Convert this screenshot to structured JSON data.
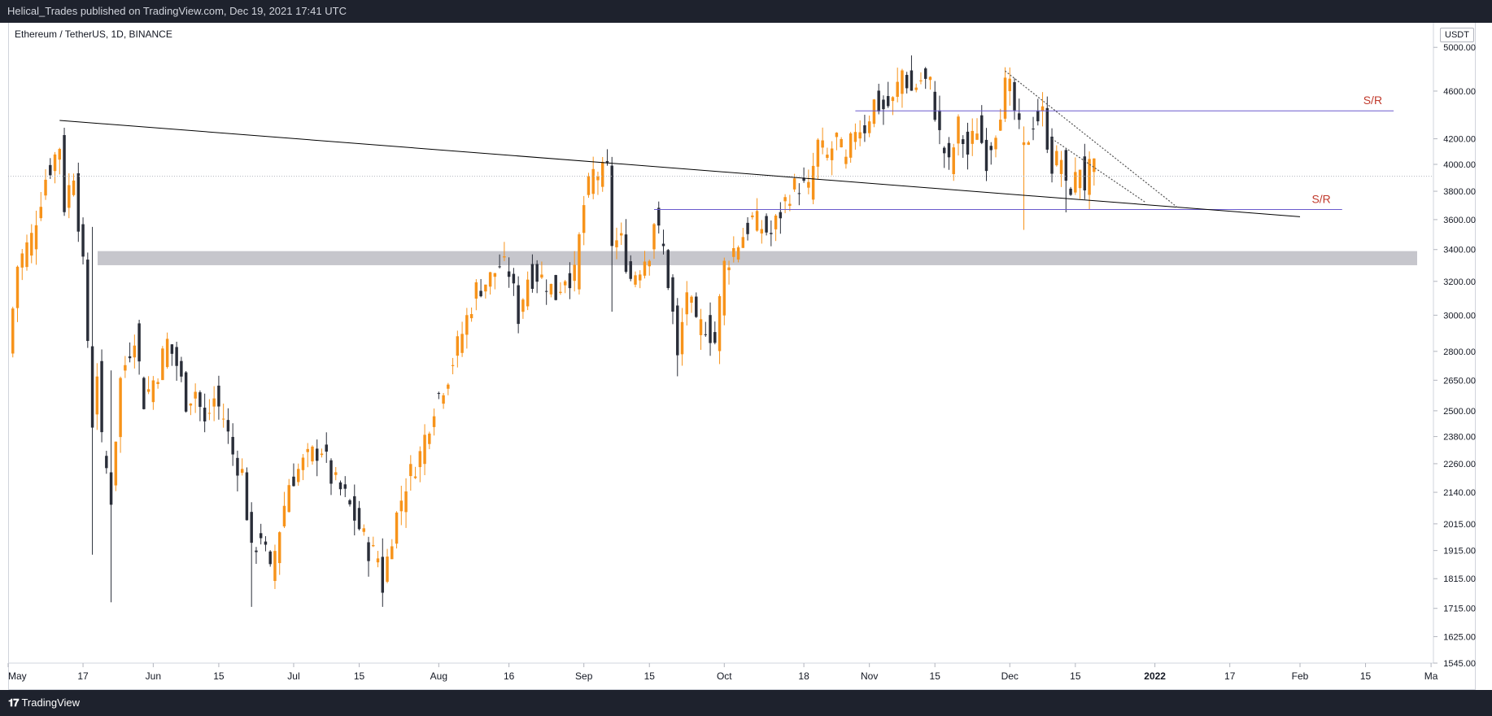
{
  "header": {
    "publisher": "Helical_Trades published on TradingView.com, Dec 19, 2021 17:41 UTC"
  },
  "symbol": {
    "title": "Ethereum / TetherUS, 1D, BINANCE",
    "currency": "USDT"
  },
  "footer": {
    "brand": "TradingView",
    "logo_icon": "tradingview-logo-icon"
  },
  "colors": {
    "up": "#f7931a",
    "down": "#2a2e39",
    "sr_line": "#6a5acd",
    "sr_text": "#c0392b",
    "zone": "#c6c6cc",
    "trend": "#000000"
  },
  "chart_data": {
    "type": "candlestick",
    "scale": "log",
    "ylim": [
      1545,
      5240
    ],
    "y_ticks": [
      5000,
      4600,
      4200,
      4000,
      3800,
      3600,
      3400,
      3200,
      3000,
      2800,
      2650,
      2500,
      2380,
      2260,
      2140,
      2015,
      1915,
      1815,
      1715,
      1625,
      1545
    ],
    "x_ticks": [
      {
        "date": "2021-05-01",
        "label": "May"
      },
      {
        "date": "2021-05-17",
        "label": "17"
      },
      {
        "date": "2021-06-01",
        "label": "Jun"
      },
      {
        "date": "2021-06-15",
        "label": "15"
      },
      {
        "date": "2021-07-01",
        "label": "Jul"
      },
      {
        "date": "2021-07-15",
        "label": "15"
      },
      {
        "date": "2021-08-01",
        "label": "Aug"
      },
      {
        "date": "2021-08-16",
        "label": "16"
      },
      {
        "date": "2021-09-01",
        "label": "Sep"
      },
      {
        "date": "2021-09-15",
        "label": "15"
      },
      {
        "date": "2021-10-01",
        "label": "Oct"
      },
      {
        "date": "2021-10-18",
        "label": "18"
      },
      {
        "date": "2021-11-01",
        "label": "Nov"
      },
      {
        "date": "2021-11-15",
        "label": "15"
      },
      {
        "date": "2021-12-01",
        "label": "Dec"
      },
      {
        "date": "2021-12-15",
        "label": "15"
      },
      {
        "date": "2022-01-01",
        "label": "2022"
      },
      {
        "date": "2022-01-17",
        "label": "17"
      },
      {
        "date": "2022-02-01",
        "label": "Feb"
      },
      {
        "date": "2022-02-15",
        "label": "15"
      },
      {
        "date": "2022-03-01",
        "label": "Ma"
      }
    ],
    "anchors": [
      [
        "2021-05-01",
        2780
      ],
      [
        "2021-05-03",
        3300
      ],
      [
        "2021-05-06",
        3480
      ],
      [
        "2021-05-09",
        3900
      ],
      [
        "2021-05-12",
        4150
      ],
      [
        "2021-05-13",
        3700
      ],
      [
        "2021-05-15",
        3950
      ],
      [
        "2021-05-16",
        3600
      ],
      [
        "2021-05-17",
        3280
      ],
      [
        "2021-05-19",
        2450
      ],
      [
        "2021-05-20",
        2700
      ],
      [
        "2021-05-21",
        2350
      ],
      [
        "2021-05-23",
        2120
      ],
      [
        "2021-05-25",
        2650
      ],
      [
        "2021-05-28",
        2900
      ],
      [
        "2021-05-30",
        2550
      ],
      [
        "2021-06-02",
        2700
      ],
      [
        "2021-06-04",
        2850
      ],
      [
        "2021-06-06",
        2730
      ],
      [
        "2021-06-08",
        2550
      ],
      [
        "2021-06-10",
        2600
      ],
      [
        "2021-06-12",
        2430
      ],
      [
        "2021-06-14",
        2560
      ],
      [
        "2021-06-16",
        2470
      ],
      [
        "2021-06-18",
        2300
      ],
      [
        "2021-06-20",
        2220
      ],
      [
        "2021-06-22",
        1900
      ],
      [
        "2021-06-24",
        1980
      ],
      [
        "2021-06-26",
        1830
      ],
      [
        "2021-06-28",
        2000
      ],
      [
        "2021-06-30",
        2180
      ],
      [
        "2021-07-03",
        2260
      ],
      [
        "2021-07-05",
        2300
      ],
      [
        "2021-07-07",
        2330
      ],
      [
        "2021-07-09",
        2200
      ],
      [
        "2021-07-12",
        2120
      ],
      [
        "2021-07-15",
        2000
      ],
      [
        "2021-07-17",
        1920
      ],
      [
        "2021-07-19",
        1890
      ],
      [
        "2021-07-20",
        1790
      ],
      [
        "2021-07-22",
        1980
      ],
      [
        "2021-07-25",
        2180
      ],
      [
        "2021-07-28",
        2300
      ],
      [
        "2021-07-31",
        2530
      ],
      [
        "2021-08-03",
        2680
      ],
      [
        "2021-08-06",
        2900
      ],
      [
        "2021-08-09",
        3150
      ],
      [
        "2021-08-12",
        3220
      ],
      [
        "2021-08-14",
        3300
      ],
      [
        "2021-08-16",
        3260
      ],
      [
        "2021-08-18",
        3000
      ],
      [
        "2021-08-20",
        3230
      ],
      [
        "2021-08-22",
        3240
      ],
      [
        "2021-08-24",
        3200
      ],
      [
        "2021-08-26",
        3120
      ],
      [
        "2021-08-28",
        3240
      ],
      [
        "2021-08-30",
        3230
      ],
      [
        "2021-09-01",
        3700
      ],
      [
        "2021-09-02",
        3820
      ],
      [
        "2021-09-03",
        3930
      ],
      [
        "2021-09-05",
        3930
      ],
      [
        "2021-09-06",
        3950
      ],
      [
        "2021-09-07",
        3450
      ],
      [
        "2021-09-09",
        3450
      ],
      [
        "2021-09-11",
        3220
      ],
      [
        "2021-09-13",
        3300
      ],
      [
        "2021-09-15",
        3400
      ],
      [
        "2021-09-16",
        3600
      ],
      [
        "2021-09-18",
        3400
      ],
      [
        "2021-09-20",
        3000
      ],
      [
        "2021-09-21",
        2750
      ],
      [
        "2021-09-23",
        3150
      ],
      [
        "2021-09-25",
        2920
      ],
      [
        "2021-09-27",
        2950
      ],
      [
        "2021-09-29",
        2850
      ],
      [
        "2021-10-01",
        3300
      ],
      [
        "2021-10-03",
        3400
      ],
      [
        "2021-10-05",
        3500
      ],
      [
        "2021-10-07",
        3600
      ],
      [
        "2021-10-09",
        3550
      ],
      [
        "2021-10-11",
        3500
      ],
      [
        "2021-10-13",
        3650
      ],
      [
        "2021-10-15",
        3800
      ],
      [
        "2021-10-17",
        3850
      ],
      [
        "2021-10-19",
        3800
      ],
      [
        "2021-10-21",
        4150
      ],
      [
        "2021-10-23",
        4050
      ],
      [
        "2021-10-25",
        4200
      ],
      [
        "2021-10-27",
        4000
      ],
      [
        "2021-10-29",
        4300
      ],
      [
        "2021-10-31",
        4300
      ],
      [
        "2021-11-02",
        4500
      ],
      [
        "2021-11-04",
        4450
      ],
      [
        "2021-11-06",
        4500
      ],
      [
        "2021-11-08",
        4780
      ],
      [
        "2021-11-10",
        4600
      ],
      [
        "2021-11-12",
        4700
      ],
      [
        "2021-11-14",
        4650
      ],
      [
        "2021-11-16",
        4220
      ],
      [
        "2021-11-18",
        3980
      ],
      [
        "2021-11-20",
        4300
      ],
      [
        "2021-11-22",
        4080
      ],
      [
        "2021-11-24",
        4300
      ],
      [
        "2021-11-26",
        4050
      ],
      [
        "2021-11-28",
        4300
      ],
      [
        "2021-11-30",
        4630
      ],
      [
        "2021-12-01",
        4600
      ],
      [
        "2021-12-03",
        4250
      ],
      [
        "2021-12-04",
        4100
      ],
      [
        "2021-12-06",
        4350
      ],
      [
        "2021-12-08",
        4400
      ],
      [
        "2021-12-10",
        4000
      ],
      [
        "2021-12-12",
        4050
      ],
      [
        "2021-12-13",
        3800
      ],
      [
        "2021-12-15",
        3880
      ],
      [
        "2021-12-16",
        4000
      ],
      [
        "2021-12-17",
        3850
      ],
      [
        "2021-12-18",
        3950
      ],
      [
        "2021-12-19",
        3950
      ]
    ],
    "sr_levels": [
      {
        "label": "S/R",
        "price": 4430,
        "from": "2021-10-29",
        "to": "2022-02-21"
      },
      {
        "label": "S/R",
        "price": 3670,
        "from": "2021-09-16",
        "to": "2022-02-10"
      }
    ],
    "gray_zone": {
      "from_price": 3300,
      "to_price": 3390
    },
    "trendlines": [
      {
        "style": "solid",
        "points": [
          [
            "2021-05-12",
            4350
          ],
          [
            "2022-02-01",
            3620
          ]
        ]
      },
      {
        "style": "dotted",
        "points": [
          [
            "2021-11-30",
            4780
          ],
          [
            "2022-01-06",
            3680
          ]
        ]
      },
      {
        "style": "dotted",
        "points": [
          [
            "2021-12-10",
            4200
          ],
          [
            "2021-12-30",
            3720
          ]
        ]
      }
    ],
    "spikes": [
      {
        "date": "2021-05-19",
        "low": 1900,
        "high": 3550
      },
      {
        "date": "2021-05-23",
        "low": 1735,
        "high": 2700
      },
      {
        "date": "2021-06-22",
        "low": 1720,
        "high": 2100
      },
      {
        "date": "2021-07-20",
        "low": 1720,
        "high": 1960
      },
      {
        "date": "2021-09-07",
        "low": 3020,
        "high": 3970
      },
      {
        "date": "2021-09-21",
        "low": 2670,
        "high": 3100
      },
      {
        "date": "2021-12-04",
        "low": 3530,
        "high": 4300
      },
      {
        "date": "2021-12-13",
        "low": 3650,
        "high": 4000
      }
    ]
  }
}
